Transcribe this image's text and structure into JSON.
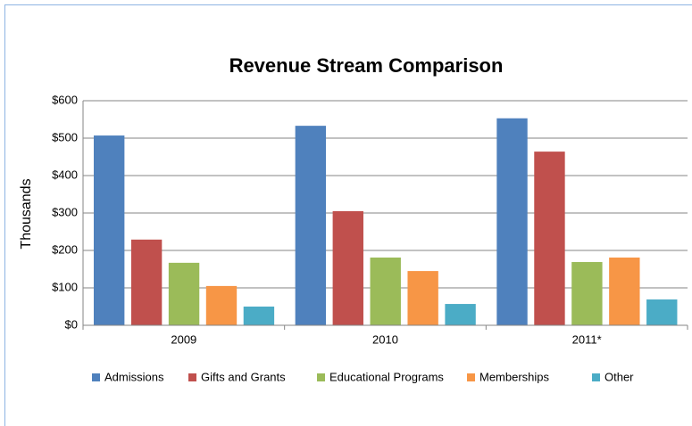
{
  "chart_data": {
    "type": "bar",
    "title": "Revenue Stream Comparison",
    "y_label": "Thousands",
    "categories": [
      "2009",
      "2010",
      "2011*"
    ],
    "series": [
      {
        "name": "Admissions",
        "color": "#4f81bd",
        "values": [
          507,
          533,
          553
        ]
      },
      {
        "name": "Gifts and Grants",
        "color": "#c0504d",
        "values": [
          229,
          305,
          464
        ]
      },
      {
        "name": "Educational Programs",
        "color": "#9bbb59",
        "values": [
          167,
          181,
          169
        ]
      },
      {
        "name": "Memberships",
        "color": "#f79646",
        "values": [
          105,
          145,
          181
        ]
      },
      {
        "name": "Other",
        "color": "#4bacc6",
        "values": [
          50,
          57,
          69
        ]
      }
    ],
    "ylim": [
      0,
      600
    ],
    "yticks": [
      {
        "value": 0,
        "label": "$0"
      },
      {
        "value": 100,
        "label": "$100"
      },
      {
        "value": 200,
        "label": "$200"
      },
      {
        "value": 300,
        "label": "$300"
      },
      {
        "value": 400,
        "label": "$400"
      },
      {
        "value": 500,
        "label": "$500"
      },
      {
        "value": 600,
        "label": "$600"
      }
    ],
    "grid": true,
    "legend": "bottom"
  }
}
